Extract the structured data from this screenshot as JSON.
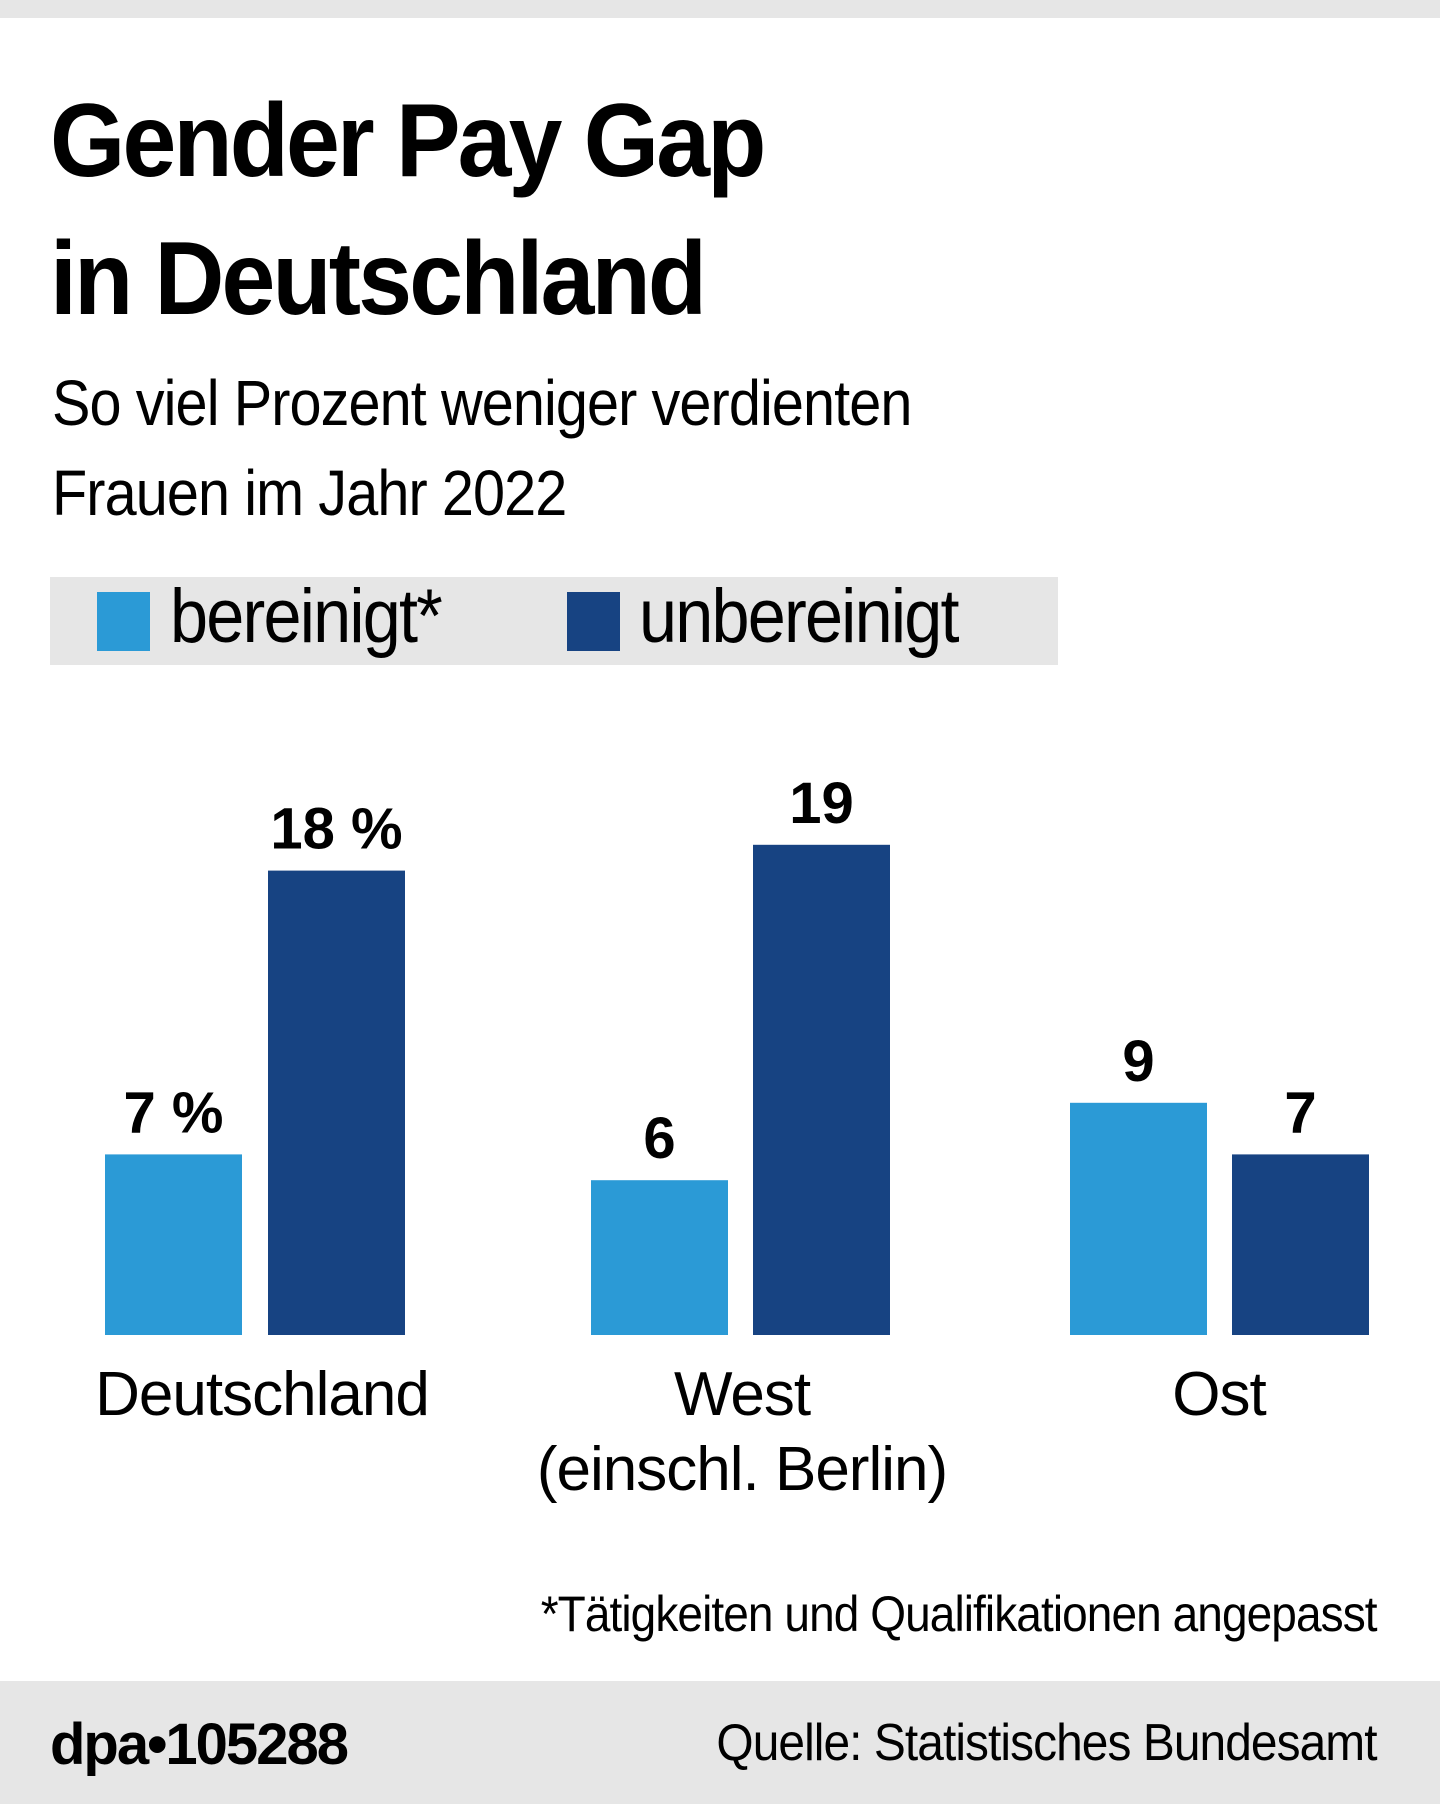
{
  "title_line1": "Gender Pay Gap",
  "title_line2": "in Deutschland",
  "subtitle_line1": "So viel Prozent weniger verdienten",
  "subtitle_line2": "Frauen im Jahr 2022",
  "footnote": "*Tätigkeiten und Qualifikationen angepasst",
  "footer": {
    "id": "dpa•105288",
    "source": "Quelle: Statistisches Bundesamt"
  },
  "chart_data": {
    "type": "bar",
    "categories": [
      "Deutschland",
      "West (einschl. Berlin)",
      "Ost"
    ],
    "category_lines": [
      [
        "Deutschland"
      ],
      [
        "West",
        "(einschl. Berlin)"
      ],
      [
        "Ost"
      ]
    ],
    "series": [
      {
        "name": "bereinigt*",
        "color": "#2b9ad6",
        "values": [
          7,
          6,
          9
        ],
        "labels": [
          "7 %",
          "6",
          "9"
        ]
      },
      {
        "name": "unbereinigt",
        "color": "#174382",
        "values": [
          18,
          19,
          7
        ],
        "labels": [
          "18 %",
          "19",
          "7"
        ]
      }
    ],
    "unit": "%",
    "ylim": [
      0,
      19
    ],
    "grid": false,
    "legend": "top-left"
  }
}
